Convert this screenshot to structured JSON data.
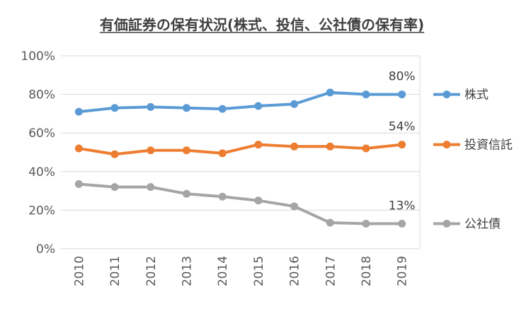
{
  "chart_data": {
    "type": "line",
    "title": "有価証券の保有状況(株式、投信、公社債の保有率)",
    "categories": [
      "2010",
      "2011",
      "2012",
      "2013",
      "2014",
      "2015",
      "2016",
      "2017",
      "2018",
      "2019"
    ],
    "ylim": [
      0,
      100
    ],
    "yticks": [
      "0%",
      "20%",
      "40%",
      "60%",
      "80%",
      "100%"
    ],
    "grid": true,
    "legend_position": "right",
    "series": [
      {
        "name": "株式",
        "color": "#5B9BD5",
        "values": [
          71,
          73,
          73.5,
          73,
          72.5,
          74,
          75,
          81,
          80,
          80
        ],
        "end_label": "80%"
      },
      {
        "name": "投資信託",
        "color": "#ED7D31",
        "values": [
          52,
          49,
          51,
          51,
          49.5,
          54,
          53,
          53,
          52,
          54
        ],
        "end_label": "54%"
      },
      {
        "name": "公社債",
        "color": "#A5A5A5",
        "values": [
          33.5,
          32,
          32,
          28.5,
          27,
          25,
          22,
          13.5,
          13,
          13
        ],
        "end_label": "13%"
      }
    ]
  }
}
